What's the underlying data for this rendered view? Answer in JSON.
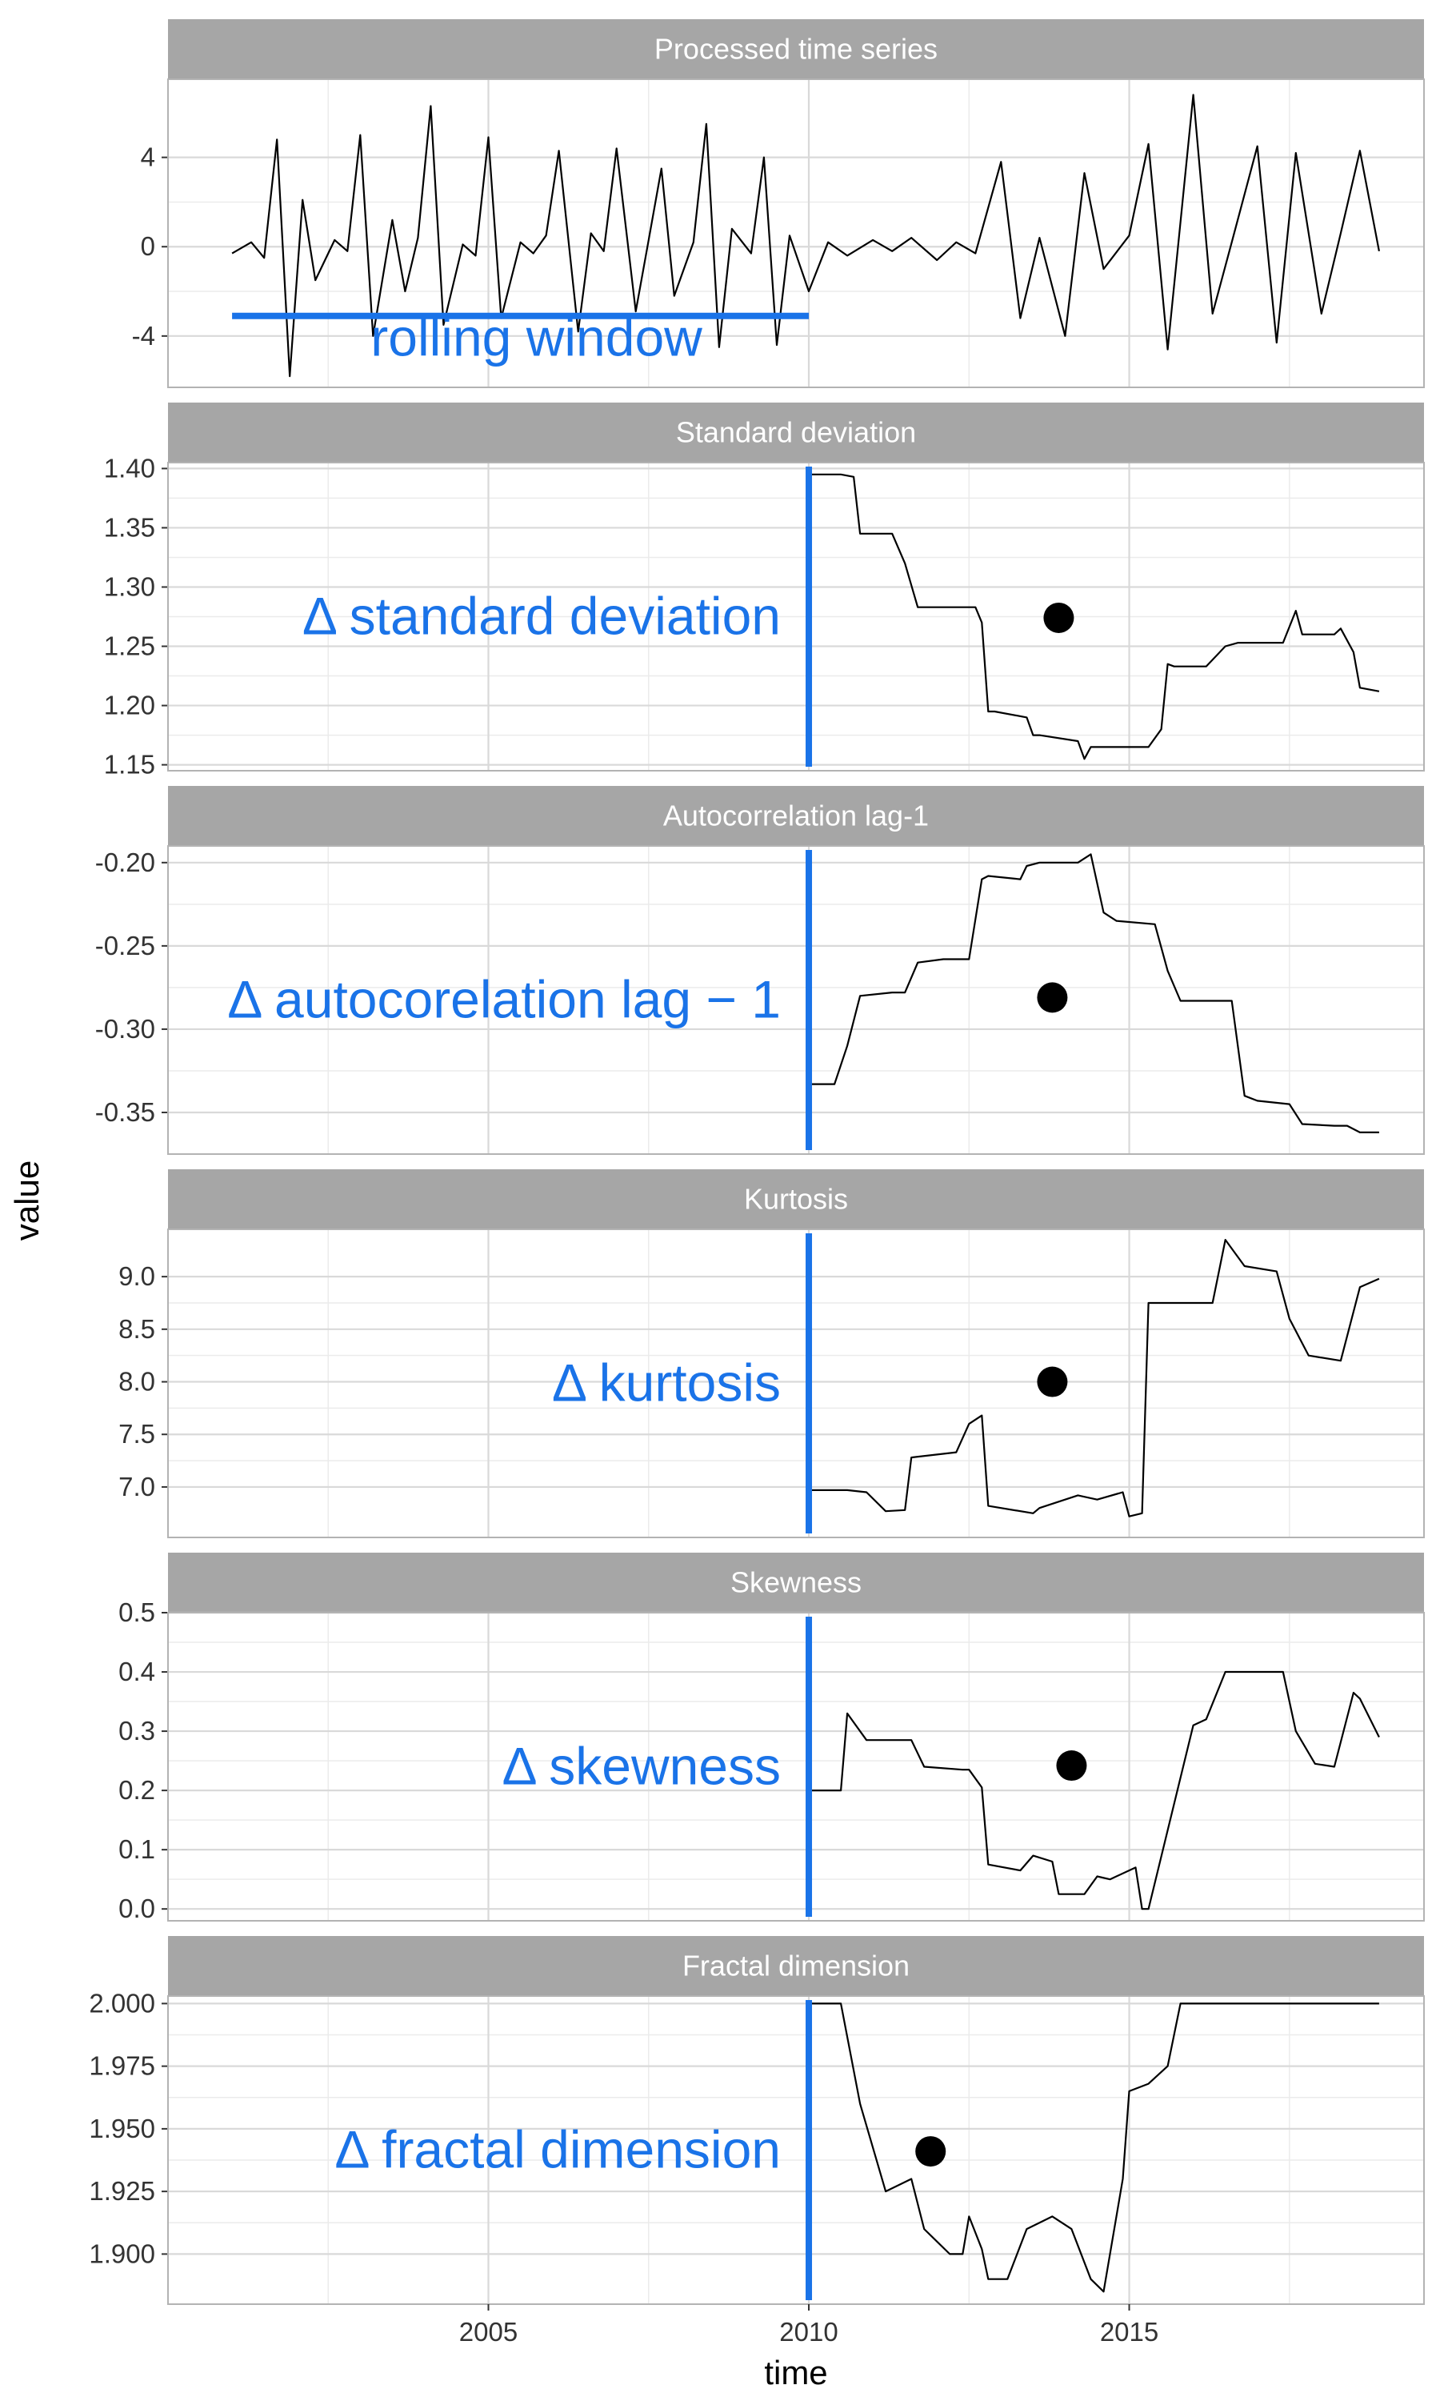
{
  "chart_data": {
    "type": "line",
    "xlabel": "time",
    "ylabel": "value",
    "xlim": [
      2000.0,
      2019.6
    ],
    "x_ticks": [
      2005,
      2010,
      2015
    ],
    "x_tick_labels": [
      "2005",
      "2010",
      "2015"
    ],
    "grid": true,
    "accent_color": "#1a73e8",
    "panels": [
      {
        "title": "Processed time series",
        "ylim": [
          -6.3,
          7.5
        ],
        "y_ticks": [
          4,
          0,
          -4
        ],
        "y_tick_labels": [
          "4",
          "0",
          "-4"
        ],
        "series": [
          {
            "x": [
              2001.0,
              2001.3,
              2001.5,
              2001.7,
              2001.9,
              2002.1,
              2002.3,
              2002.6,
              2002.8,
              2003.0,
              2003.2,
              2003.5,
              2003.7,
              2003.9,
              2004.1,
              2004.3,
              2004.6,
              2004.8,
              2005.0,
              2005.2,
              2005.5,
              2005.7,
              2005.9,
              2006.1,
              2006.4,
              2006.6,
              2006.8,
              2007.0,
              2007.3,
              2007.5,
              2007.7,
              2007.9,
              2008.2,
              2008.4,
              2008.6,
              2008.8,
              2009.1,
              2009.3,
              2009.5,
              2009.7,
              2010.0,
              2010.3,
              2010.6,
              2011.0,
              2011.3,
              2011.6,
              2012.0,
              2012.3,
              2012.6,
              2013.0,
              2013.3,
              2013.6,
              2014.0,
              2014.3,
              2014.6,
              2015.0,
              2015.3,
              2015.6,
              2016.0,
              2016.3,
              2016.6,
              2017.0,
              2017.3,
              2017.6,
              2018.0,
              2018.3,
              2018.6,
              2018.9
            ],
            "values": [
              -0.3,
              0.2,
              -0.5,
              4.8,
              -5.8,
              2.1,
              -1.5,
              0.3,
              -0.2,
              5.0,
              -4.0,
              1.2,
              -2.0,
              0.4,
              6.3,
              -3.5,
              0.1,
              -0.4,
              4.9,
              -3.2,
              0.2,
              -0.3,
              0.5,
              4.3,
              -3.8,
              0.6,
              -0.2,
              4.4,
              -2.9,
              0.3,
              3.5,
              -2.2,
              0.2,
              5.5,
              -4.5,
              0.8,
              -0.3,
              4.0,
              -4.4,
              0.5,
              -2.0,
              0.2,
              -0.4,
              0.3,
              -0.2,
              0.4,
              -0.6,
              0.2,
              -0.3,
              3.8,
              -3.2,
              0.4,
              -4.0,
              3.3,
              -1.0,
              0.5,
              4.6,
              -4.6,
              6.8,
              -3.0,
              0.2,
              4.5,
              -4.3,
              4.2,
              -3.0,
              0.6,
              4.3,
              -0.2
            ]
          }
        ],
        "annotation": {
          "text": "rolling window",
          "x_start": 2001.0,
          "x_end": 2010.0,
          "y": -3.1
        }
      },
      {
        "title": "Standard deviation",
        "ylim": [
          1.145,
          1.405
        ],
        "y_ticks": [
          1.4,
          1.35,
          1.3,
          1.25,
          1.2,
          1.15
        ],
        "y_tick_labels": [
          "1.40",
          "1.35",
          "1.30",
          "1.25",
          "1.20",
          "1.15"
        ],
        "series": [
          {
            "x": [
              2010.0,
              2010.5,
              2010.7,
              2010.8,
              2011.3,
              2011.5,
              2011.7,
              2012.1,
              2012.6,
              2012.7,
              2012.8,
              2012.9,
              2013.4,
              2013.5,
              2013.6,
              2014.2,
              2014.3,
              2014.4,
              2014.8,
              2015.3,
              2015.5,
              2015.6,
              2015.7,
              2016.2,
              2016.5,
              2016.7,
              2016.8,
              2017.4,
              2017.6,
              2017.7,
              2018.2,
              2018.3,
              2018.5,
              2018.6,
              2018.9
            ],
            "values": [
              1.395,
              1.395,
              1.393,
              1.345,
              1.345,
              1.32,
              1.283,
              1.283,
              1.283,
              1.27,
              1.195,
              1.195,
              1.19,
              1.175,
              1.175,
              1.17,
              1.155,
              1.165,
              1.165,
              1.165,
              1.18,
              1.235,
              1.233,
              1.233,
              1.25,
              1.253,
              1.253,
              1.253,
              1.28,
              1.26,
              1.26,
              1.265,
              1.245,
              1.215,
              1.212
            ]
          }
        ],
        "annotation": {
          "text": "Δ standard deviation",
          "marker_x": 2013.9,
          "marker_y": 1.274
        }
      },
      {
        "title": "Autocorrelation lag-1",
        "ylim": [
          -0.375,
          -0.19
        ],
        "y_ticks": [
          -0.2,
          -0.25,
          -0.3,
          -0.35
        ],
        "y_tick_labels": [
          "-0.20",
          "-0.25",
          "-0.30",
          "-0.35"
        ],
        "series": [
          {
            "x": [
              2010.0,
              2010.4,
              2010.6,
              2010.8,
              2011.3,
              2011.5,
              2011.7,
              2012.1,
              2012.4,
              2012.5,
              2012.7,
              2012.8,
              2013.3,
              2013.4,
              2013.6,
              2014.2,
              2014.4,
              2014.6,
              2014.8,
              2015.4,
              2015.6,
              2015.8,
              2015.9,
              2016.6,
              2016.8,
              2017.0,
              2017.5,
              2017.7,
              2018.2,
              2018.4,
              2018.6,
              2018.9
            ],
            "values": [
              -0.333,
              -0.333,
              -0.31,
              -0.28,
              -0.278,
              -0.278,
              -0.26,
              -0.258,
              -0.258,
              -0.258,
              -0.21,
              -0.208,
              -0.21,
              -0.202,
              -0.2,
              -0.2,
              -0.195,
              -0.23,
              -0.235,
              -0.237,
              -0.265,
              -0.283,
              -0.283,
              -0.283,
              -0.34,
              -0.343,
              -0.345,
              -0.357,
              -0.358,
              -0.358,
              -0.362,
              -0.362
            ]
          }
        ],
        "annotation": {
          "text": "Δ autocorelation lag − 1",
          "marker_x": 2013.8,
          "marker_y": -0.281
        }
      },
      {
        "title": "Kurtosis",
        "ylim": [
          6.52,
          9.45
        ],
        "y_ticks": [
          9.0,
          8.5,
          8.0,
          7.5,
          7.0
        ],
        "y_tick_labels": [
          "9.0",
          "8.5",
          "8.0",
          "7.5",
          "7.0"
        ],
        "series": [
          {
            "x": [
              2010.0,
              2010.6,
              2010.9,
              2011.2,
              2011.5,
              2011.6,
              2012.3,
              2012.5,
              2012.7,
              2012.8,
              2013.5,
              2013.6,
              2014.2,
              2014.5,
              2014.9,
              2015.0,
              2015.2,
              2015.3,
              2016.3,
              2016.5,
              2016.8,
              2017.3,
              2017.5,
              2017.8,
              2018.3,
              2018.6,
              2018.9
            ],
            "values": [
              6.97,
              6.97,
              6.95,
              6.77,
              6.78,
              7.28,
              7.33,
              7.6,
              7.68,
              6.82,
              6.75,
              6.8,
              6.92,
              6.88,
              6.95,
              6.72,
              6.75,
              8.75,
              8.75,
              9.35,
              9.1,
              9.05,
              8.6,
              8.25,
              8.2,
              8.9,
              8.98
            ]
          }
        ],
        "annotation": {
          "text": "Δ kurtosis",
          "marker_x": 2013.8,
          "marker_y": 8.0
        }
      },
      {
        "title": "Skewness",
        "ylim": [
          -0.02,
          0.5
        ],
        "y_ticks": [
          0.5,
          0.4,
          0.3,
          0.2,
          0.1,
          0.0
        ],
        "y_tick_labels": [
          "0.5",
          "0.4",
          "0.3",
          "0.2",
          "0.1",
          "0.0"
        ],
        "series": [
          {
            "x": [
              2010.0,
              2010.5,
              2010.6,
              2010.9,
              2011.6,
              2011.8,
              2012.4,
              2012.5,
              2012.7,
              2012.8,
              2013.3,
              2013.5,
              2013.8,
              2013.9,
              2014.3,
              2014.5,
              2014.7,
              2015.1,
              2015.2,
              2015.3,
              2016.0,
              2016.2,
              2016.5,
              2017.4,
              2017.6,
              2017.9,
              2018.2,
              2018.5,
              2018.6,
              2018.9
            ],
            "values": [
              0.2,
              0.2,
              0.33,
              0.285,
              0.285,
              0.24,
              0.235,
              0.235,
              0.205,
              0.075,
              0.065,
              0.09,
              0.08,
              0.025,
              0.025,
              0.055,
              0.05,
              0.07,
              0.0,
              0.0,
              0.31,
              0.32,
              0.4,
              0.4,
              0.3,
              0.245,
              0.24,
              0.365,
              0.355,
              0.29
            ]
          }
        ],
        "annotation": {
          "text": "Δ skewness",
          "marker_x": 2014.1,
          "marker_y": 0.242
        }
      },
      {
        "title": "Fractal dimension",
        "ylim": [
          1.88,
          2.003
        ],
        "y_ticks": [
          2.0,
          1.975,
          1.95,
          1.925,
          1.9
        ],
        "y_tick_labels": [
          "2.000",
          "1.975",
          "1.950",
          "1.925",
          "1.900"
        ],
        "series": [
          {
            "x": [
              2010.0,
              2010.5,
              2010.8,
              2011.2,
              2011.6,
              2011.8,
              2012.2,
              2012.4,
              2012.5,
              2012.7,
              2012.8,
              2013.1,
              2013.4,
              2013.8,
              2014.1,
              2014.4,
              2014.6,
              2014.9,
              2015.0,
              2015.3,
              2015.6,
              2015.8,
              2016.5,
              2017.5,
              2018.9
            ],
            "values": [
              2.0,
              2.0,
              1.96,
              1.925,
              1.93,
              1.91,
              1.9,
              1.9,
              1.915,
              1.902,
              1.89,
              1.89,
              1.91,
              1.915,
              1.91,
              1.89,
              1.885,
              1.93,
              1.965,
              1.968,
              1.975,
              2.0,
              2.0,
              2.0,
              2.0
            ]
          }
        ],
        "annotation": {
          "text": "Δ fractal dimension",
          "marker_x": 2011.9,
          "marker_y": 1.941
        }
      }
    ]
  }
}
